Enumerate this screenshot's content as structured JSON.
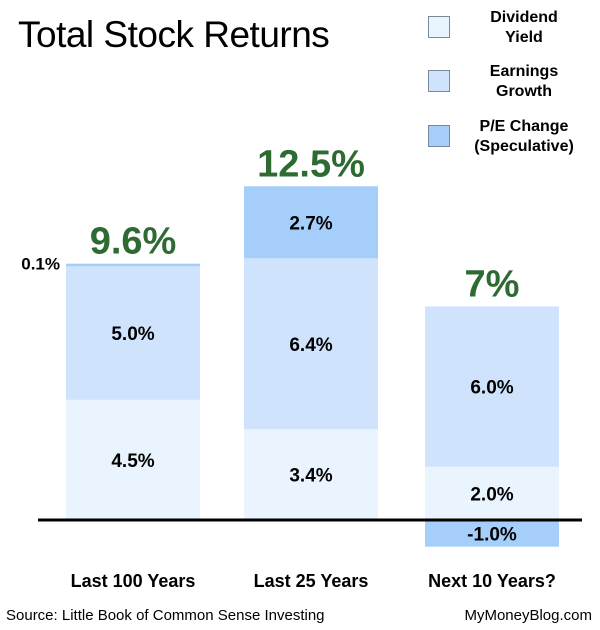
{
  "title": "Total Stock Returns",
  "legend": [
    {
      "line1": "Dividend",
      "line2": "Yield",
      "color": "#eaf4fe"
    },
    {
      "line1": "Earnings",
      "line2": "Growth",
      "color": "#cfe4fc"
    },
    {
      "line1": "P/E Change",
      "line2": "(Speculative)",
      "color": "#a5cffa"
    }
  ],
  "source": "Source: Little Book of Common Sense Investing",
  "credit": "MyMoneyBlog.com",
  "chart_data": {
    "type": "bar",
    "stacked": true,
    "categories": [
      "Last 100 Years",
      "Last 25 Years",
      "Next 10 Years?"
    ],
    "totals": [
      "9.6%",
      "12.5%",
      "7%"
    ],
    "series": [
      {
        "name": "Dividend Yield",
        "values": [
          4.5,
          3.4,
          2.0
        ],
        "labels": [
          "4.5%",
          "3.4%",
          "2.0%"
        ],
        "color": "#eaf4fe"
      },
      {
        "name": "Earnings Growth",
        "values": [
          5.0,
          6.4,
          6.0
        ],
        "labels": [
          "5.0%",
          "6.4%",
          "6.0%"
        ],
        "color": "#cfe4fc"
      },
      {
        "name": "P/E Change (Speculative)",
        "values": [
          0.1,
          2.7,
          -1.0
        ],
        "labels": [
          "0.1%",
          "2.7%",
          "-1.0%"
        ],
        "color": "#a5cffa"
      }
    ],
    "total_color": "#2e6b32"
  }
}
